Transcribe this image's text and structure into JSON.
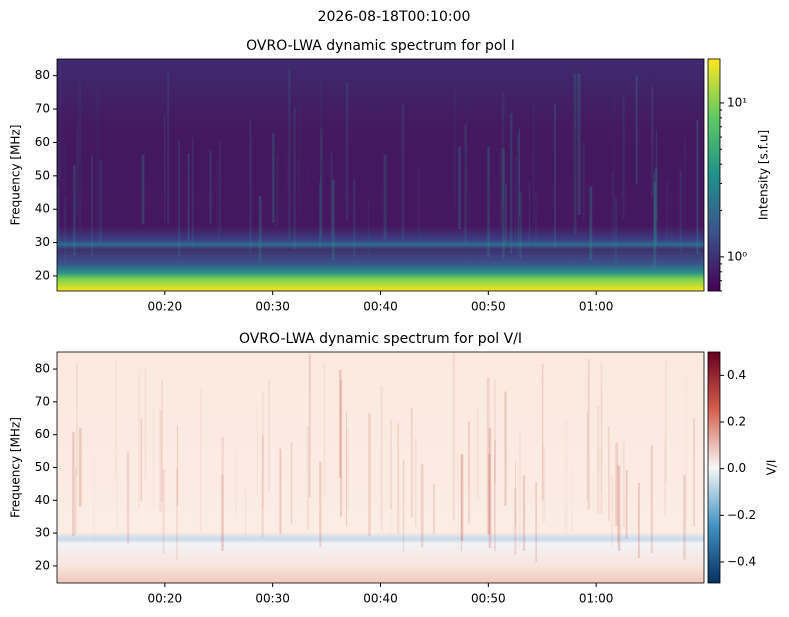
{
  "title": "2026-08-18T00:10:00",
  "chart_data": [
    {
      "type": "heatmap",
      "title": "OVRO-LWA dynamic spectrum for pol I",
      "y_label": "Frequency [MHz]",
      "xlim": [
        10,
        70
      ],
      "xticks": [
        {
          "value": 20,
          "label": "00:20"
        },
        {
          "value": 30,
          "label": "00:30"
        },
        {
          "value": 40,
          "label": "00:40"
        },
        {
          "value": 50,
          "label": "00:50"
        },
        {
          "value": 60,
          "label": "01:00"
        }
      ],
      "ylim": [
        15.5,
        85
      ],
      "yticks": [
        20,
        30,
        40,
        50,
        60,
        70,
        80
      ],
      "colorbar": {
        "label": "Intensity [s.f.u]",
        "colormap": "viridis",
        "scale": "log",
        "lim": [
          0.6,
          19.3
        ],
        "ticks": [
          {
            "value": 1,
            "label": "10⁰"
          },
          {
            "value": 10,
            "label": "10¹"
          }
        ]
      }
    },
    {
      "type": "heatmap",
      "title": "OVRO-LWA dynamic spectrum for pol V/I",
      "y_label": "Frequency [MHz]",
      "xlim": [
        10,
        70
      ],
      "xticks": [
        {
          "value": 20,
          "label": "00:20"
        },
        {
          "value": 30,
          "label": "00:30"
        },
        {
          "value": 40,
          "label": "00:40"
        },
        {
          "value": 50,
          "label": "00:50"
        },
        {
          "value": 60,
          "label": "01:00"
        }
      ],
      "ylim": [
        14.8,
        85.2
      ],
      "yticks": [
        20,
        30,
        40,
        50,
        60,
        70,
        80
      ],
      "colorbar": {
        "label": "V/I",
        "colormap": "RdBu_r",
        "scale": "linear",
        "lim": [
          -0.49,
          0.5
        ],
        "ticks": [
          {
            "value": 0.4,
            "label": "0.4"
          },
          {
            "value": 0.2,
            "label": "0.2"
          },
          {
            "value": 0,
            "label": "0.0"
          },
          {
            "value": -0.2,
            "label": "−0.2"
          },
          {
            "value": -0.4,
            "label": "−0.4"
          }
        ]
      }
    }
  ]
}
